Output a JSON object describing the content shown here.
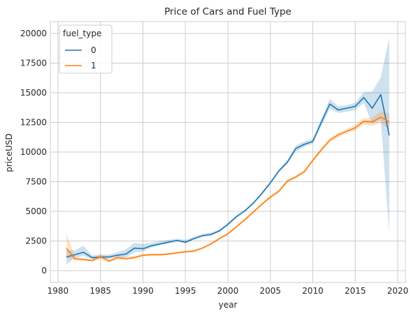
{
  "chart_data": {
    "type": "line",
    "title": "Price of Cars and Fuel Type",
    "xlabel": "year",
    "ylabel": "priceUSD",
    "xlim": [
      1980,
      2020
    ],
    "ylim": [
      0,
      20000
    ],
    "xticks": [
      1980,
      1985,
      1990,
      1995,
      2000,
      2005,
      2010,
      2015,
      2020
    ],
    "yticks": [
      0,
      2500,
      5000,
      7500,
      10000,
      12500,
      15000,
      17500,
      20000
    ],
    "grid": true,
    "legend": {
      "title": "fuel_type",
      "placement": "top-left"
    },
    "series": [
      {
        "name": "0",
        "color": "#1f77b4",
        "x": [
          1981,
          1982,
          1983,
          1984,
          1985,
          1986,
          1987,
          1988,
          1989,
          1990,
          1991,
          1992,
          1993,
          1994,
          1995,
          1996,
          1997,
          1998,
          1999,
          2000,
          2001,
          2002,
          2003,
          2004,
          2005,
          2006,
          2007,
          2008,
          2009,
          2010,
          2011,
          2012,
          2013,
          2014,
          2015,
          2016,
          2017,
          2018,
          2019
        ],
        "values": [
          1150,
          1350,
          1550,
          1100,
          1150,
          1150,
          1300,
          1400,
          1900,
          1850,
          2100,
          2250,
          2400,
          2550,
          2400,
          2700,
          2950,
          3050,
          3350,
          3900,
          4550,
          5050,
          5700,
          6500,
          7400,
          8400,
          9150,
          10300,
          10650,
          10900,
          12500,
          14050,
          13550,
          13700,
          13850,
          14600,
          13700,
          14850,
          11400
        ],
        "ci_low": [
          500,
          1100,
          1250,
          950,
          1000,
          1000,
          1100,
          1100,
          1550,
          1600,
          1950,
          2150,
          2300,
          2450,
          2300,
          2600,
          2850,
          2950,
          3250,
          3800,
          4450,
          4950,
          5600,
          6400,
          7300,
          8300,
          9000,
          10050,
          10450,
          10700,
          12200,
          13650,
          13300,
          13400,
          13550,
          14150,
          12400,
          12700,
          3100
        ],
        "ci_high": [
          1750,
          1700,
          2100,
          1300,
          1350,
          1350,
          1550,
          1800,
          2350,
          2250,
          2350,
          2500,
          2600,
          2700,
          2600,
          2850,
          3100,
          3200,
          3500,
          4050,
          4650,
          5150,
          5800,
          6650,
          7550,
          8550,
          9300,
          10550,
          10900,
          11100,
          12850,
          14500,
          13850,
          13950,
          14150,
          15050,
          15100,
          16300,
          19650
        ]
      },
      {
        "name": "1",
        "color": "#ff7f0e",
        "x": [
          1981,
          1982,
          1983,
          1984,
          1985,
          1986,
          1987,
          1988,
          1989,
          1990,
          1991,
          1992,
          1993,
          1994,
          1995,
          1996,
          1997,
          1998,
          1999,
          2000,
          2001,
          2002,
          2003,
          2004,
          2005,
          2006,
          2007,
          2008,
          2009,
          2010,
          2011,
          2012,
          2013,
          2014,
          2015,
          2016,
          2017,
          2018,
          2019
        ],
        "values": [
          1900,
          1000,
          950,
          850,
          1200,
          800,
          1100,
          1000,
          1100,
          1300,
          1350,
          1350,
          1400,
          1500,
          1600,
          1650,
          1900,
          2250,
          2700,
          3100,
          3700,
          4300,
          4950,
          5600,
          6200,
          6700,
          7550,
          7900,
          8350,
          9300,
          10200,
          11000,
          11450,
          11750,
          12050,
          12600,
          12550,
          12950,
          12550
        ],
        "ci_low": [
          1100,
          850,
          850,
          750,
          950,
          700,
          950,
          900,
          1000,
          1200,
          1250,
          1250,
          1300,
          1400,
          1500,
          1550,
          1800,
          2150,
          2600,
          3000,
          3600,
          4200,
          4850,
          5500,
          6050,
          6550,
          7400,
          7750,
          8200,
          9150,
          10000,
          10800,
          11250,
          11550,
          11800,
          12300,
          12200,
          12450,
          11900
        ],
        "ci_high": [
          3150,
          1200,
          1050,
          950,
          1400,
          950,
          1250,
          1150,
          1250,
          1400,
          1450,
          1450,
          1500,
          1600,
          1700,
          1750,
          2000,
          2350,
          2800,
          3200,
          3800,
          4400,
          5050,
          5700,
          6350,
          6850,
          7700,
          8050,
          8500,
          9450,
          10350,
          11200,
          11650,
          11950,
          12300,
          12900,
          12900,
          13450,
          13250
        ]
      }
    ]
  }
}
